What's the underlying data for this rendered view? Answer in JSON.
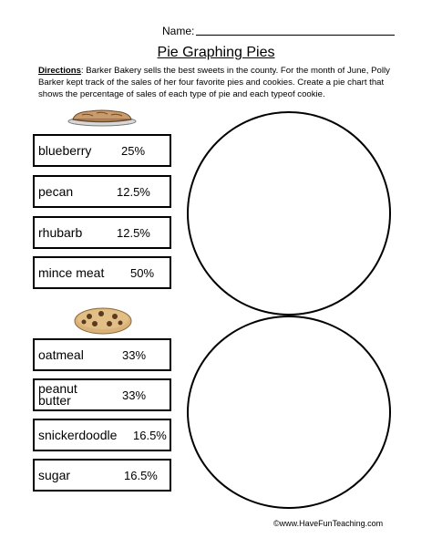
{
  "header": {
    "name_label": "Name:"
  },
  "title": "Pie Graphing Pies",
  "directions": {
    "label": "Directions",
    "text": ": Barker Bakery sells the best sweets in the county.  For the month of June, Polly Barker kept track of the sales of her four favorite pies and cookies.  Create a pie chart that shows the percentage of sales of each type of pie and each typeof cookie."
  },
  "pies": [
    {
      "name": "blueberry",
      "percent": "25%"
    },
    {
      "name": "pecan",
      "percent": "12.5%"
    },
    {
      "name": "rhubarb",
      "percent": "12.5%"
    },
    {
      "name": "mince meat",
      "percent": "50%"
    }
  ],
  "cookies": [
    {
      "name": "oatmeal",
      "percent": "33%"
    },
    {
      "name": "peanut\nbutter",
      "percent": "33%"
    },
    {
      "name": "snickerdoodle",
      "percent": "16.5%"
    },
    {
      "name": "sugar",
      "percent": "16.5%"
    }
  ],
  "footer": "©www.HaveFunTeaching.com",
  "icons": {
    "pie": "pie-icon",
    "cookie": "cookie-icon"
  }
}
